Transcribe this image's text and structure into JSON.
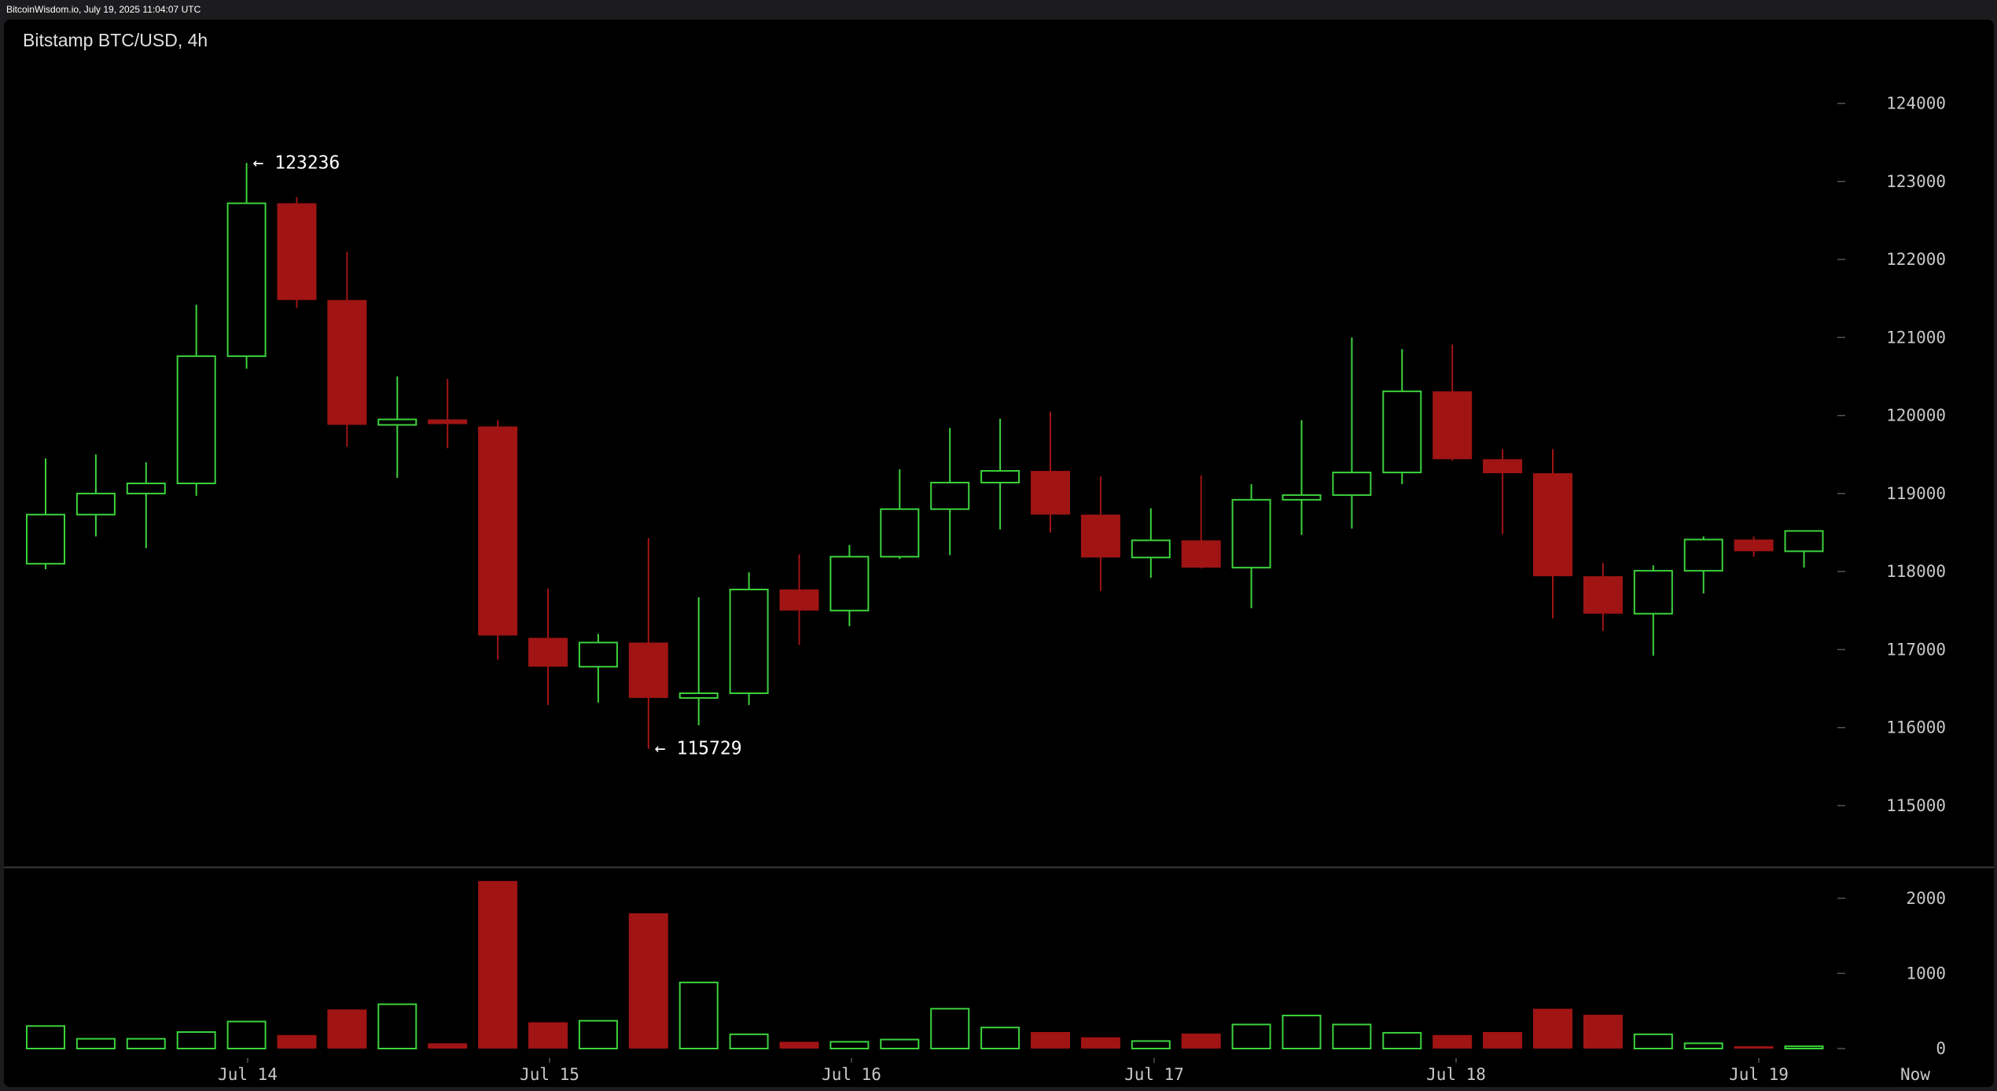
{
  "watermark": "BitcoinWisdom.io, July 19, 2025 11:04:07 UTC",
  "header": {
    "title": "Bitstamp BTC/USD, 4h"
  },
  "colors": {
    "up": "#3cd33c",
    "down": "#a01414",
    "background": "#000000",
    "axis_text": "#c8c8c8"
  },
  "chart_data": {
    "type": "candlestick",
    "title": "Bitstamp BTC/USD, 4h",
    "price_axis": {
      "ticks": [
        "124000",
        "123000",
        "122000",
        "121000",
        "120000",
        "119000",
        "118000",
        "117000",
        "116000",
        "115000"
      ],
      "range": [
        114300,
        124600
      ]
    },
    "volume_axis": {
      "ticks": [
        "2000",
        "1000",
        "0"
      ],
      "range": [
        0,
        2250
      ]
    },
    "x_tick_labels": [
      "Jul 14",
      "Jul 15",
      "Jul 16",
      "Jul 17",
      "Jul 18",
      "Jul 19",
      "Now"
    ],
    "annotations": [
      {
        "label": "← 123236",
        "price": 123236,
        "candle": 4
      },
      {
        "label": "← 115729",
        "price": 115729,
        "candle": 12
      }
    ],
    "candles": [
      {
        "o": 118100,
        "h": 119450,
        "l": 118030,
        "c": 118730,
        "v": 300
      },
      {
        "o": 118730,
        "h": 119500,
        "l": 118450,
        "c": 119000,
        "v": 130
      },
      {
        "o": 119000,
        "h": 119400,
        "l": 118300,
        "c": 119130,
        "v": 130
      },
      {
        "o": 119130,
        "h": 121420,
        "l": 118970,
        "c": 120760,
        "v": 220
      },
      {
        "o": 120760,
        "h": 123236,
        "l": 120600,
        "c": 122720,
        "v": 360
      },
      {
        "o": 122720,
        "h": 122800,
        "l": 121380,
        "c": 121480,
        "v": 180
      },
      {
        "o": 121480,
        "h": 122100,
        "l": 119600,
        "c": 119880,
        "v": 520
      },
      {
        "o": 119880,
        "h": 120500,
        "l": 119200,
        "c": 119950,
        "v": 590
      },
      {
        "o": 119950,
        "h": 120470,
        "l": 119580,
        "c": 119890,
        "v": 70
      },
      {
        "o": 119860,
        "h": 119940,
        "l": 116870,
        "c": 117180,
        "v": 2230
      },
      {
        "o": 117150,
        "h": 117780,
        "l": 116290,
        "c": 116780,
        "v": 350
      },
      {
        "o": 116780,
        "h": 117200,
        "l": 116320,
        "c": 117090,
        "v": 370
      },
      {
        "o": 117090,
        "h": 118430,
        "l": 115729,
        "c": 116380,
        "v": 1800
      },
      {
        "o": 116380,
        "h": 117670,
        "l": 116030,
        "c": 116440,
        "v": 880
      },
      {
        "o": 116440,
        "h": 117990,
        "l": 116290,
        "c": 117770,
        "v": 190
      },
      {
        "o": 117770,
        "h": 118220,
        "l": 117060,
        "c": 117500,
        "v": 90
      },
      {
        "o": 117500,
        "h": 118340,
        "l": 117300,
        "c": 118190,
        "v": 90
      },
      {
        "o": 118190,
        "h": 119310,
        "l": 118160,
        "c": 118800,
        "v": 120
      },
      {
        "o": 118800,
        "h": 119840,
        "l": 118210,
        "c": 119140,
        "v": 530
      },
      {
        "o": 119140,
        "h": 119960,
        "l": 118540,
        "c": 119290,
        "v": 280
      },
      {
        "o": 119290,
        "h": 120050,
        "l": 118500,
        "c": 118730,
        "v": 220
      },
      {
        "o": 118730,
        "h": 119220,
        "l": 117750,
        "c": 118180,
        "v": 150
      },
      {
        "o": 118180,
        "h": 118810,
        "l": 117920,
        "c": 118400,
        "v": 100
      },
      {
        "o": 118400,
        "h": 119230,
        "l": 118040,
        "c": 118050,
        "v": 200
      },
      {
        "o": 118050,
        "h": 119120,
        "l": 117530,
        "c": 118920,
        "v": 320
      },
      {
        "o": 118920,
        "h": 119940,
        "l": 118470,
        "c": 118980,
        "v": 440
      },
      {
        "o": 118980,
        "h": 121000,
        "l": 118550,
        "c": 119270,
        "v": 320
      },
      {
        "o": 119270,
        "h": 120850,
        "l": 119120,
        "c": 120310,
        "v": 210
      },
      {
        "o": 120310,
        "h": 120910,
        "l": 119420,
        "c": 119440,
        "v": 180
      },
      {
        "o": 119440,
        "h": 119570,
        "l": 118480,
        "c": 119260,
        "v": 220
      },
      {
        "o": 119260,
        "h": 119570,
        "l": 117400,
        "c": 117940,
        "v": 530
      },
      {
        "o": 117940,
        "h": 118110,
        "l": 117240,
        "c": 117460,
        "v": 450
      },
      {
        "o": 117460,
        "h": 118080,
        "l": 116920,
        "c": 118010,
        "v": 190
      },
      {
        "o": 118010,
        "h": 118450,
        "l": 117720,
        "c": 118410,
        "v": 70
      },
      {
        "o": 118410,
        "h": 118450,
        "l": 118190,
        "c": 118260,
        "v": 30
      },
      {
        "o": 118260,
        "h": 118530,
        "l": 118050,
        "c": 118520,
        "v": 30
      }
    ]
  }
}
